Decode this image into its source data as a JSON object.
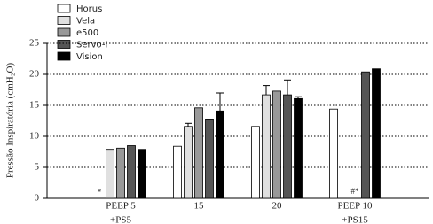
{
  "chart_data": {
    "type": "bar",
    "y_label": "Pressão Inspiratória (cmH₂O)",
    "categories": [
      [
        "PEEP 5",
        "+PS5"
      ],
      [
        "15"
      ],
      [
        "20"
      ],
      [
        "PEEP 10",
        "+PS15"
      ]
    ],
    "series": [
      {
        "name": "Horus",
        "color": "#ffffff",
        "values": [
          null,
          8.4,
          11.6,
          14.4
        ],
        "errors": [
          null,
          null,
          null,
          null
        ]
      },
      {
        "name": "Vela",
        "color": "#e0e0e0",
        "values": [
          7.9,
          11.6,
          16.7,
          null
        ],
        "errors": [
          null,
          0.5,
          1.5,
          null
        ]
      },
      {
        "name": "e500",
        "color": "#999999",
        "values": [
          8.1,
          14.6,
          17.3,
          null
        ],
        "errors": [
          null,
          null,
          null,
          null
        ]
      },
      {
        "name": "Servo-i",
        "color": "#555555",
        "values": [
          8.5,
          12.8,
          16.7,
          20.4
        ],
        "errors": [
          null,
          null,
          2.4,
          null
        ]
      },
      {
        "name": "Vision",
        "color": "#000000",
        "values": [
          7.9,
          14.1,
          16.1,
          20.9
        ],
        "errors": [
          null,
          2.9,
          0.3,
          null
        ]
      }
    ],
    "annotations": [
      "*",
      "#*"
    ],
    "ylim": [
      0,
      25
    ],
    "yticks": [
      0,
      5,
      10,
      15,
      20,
      25
    ],
    "grid": true
  }
}
